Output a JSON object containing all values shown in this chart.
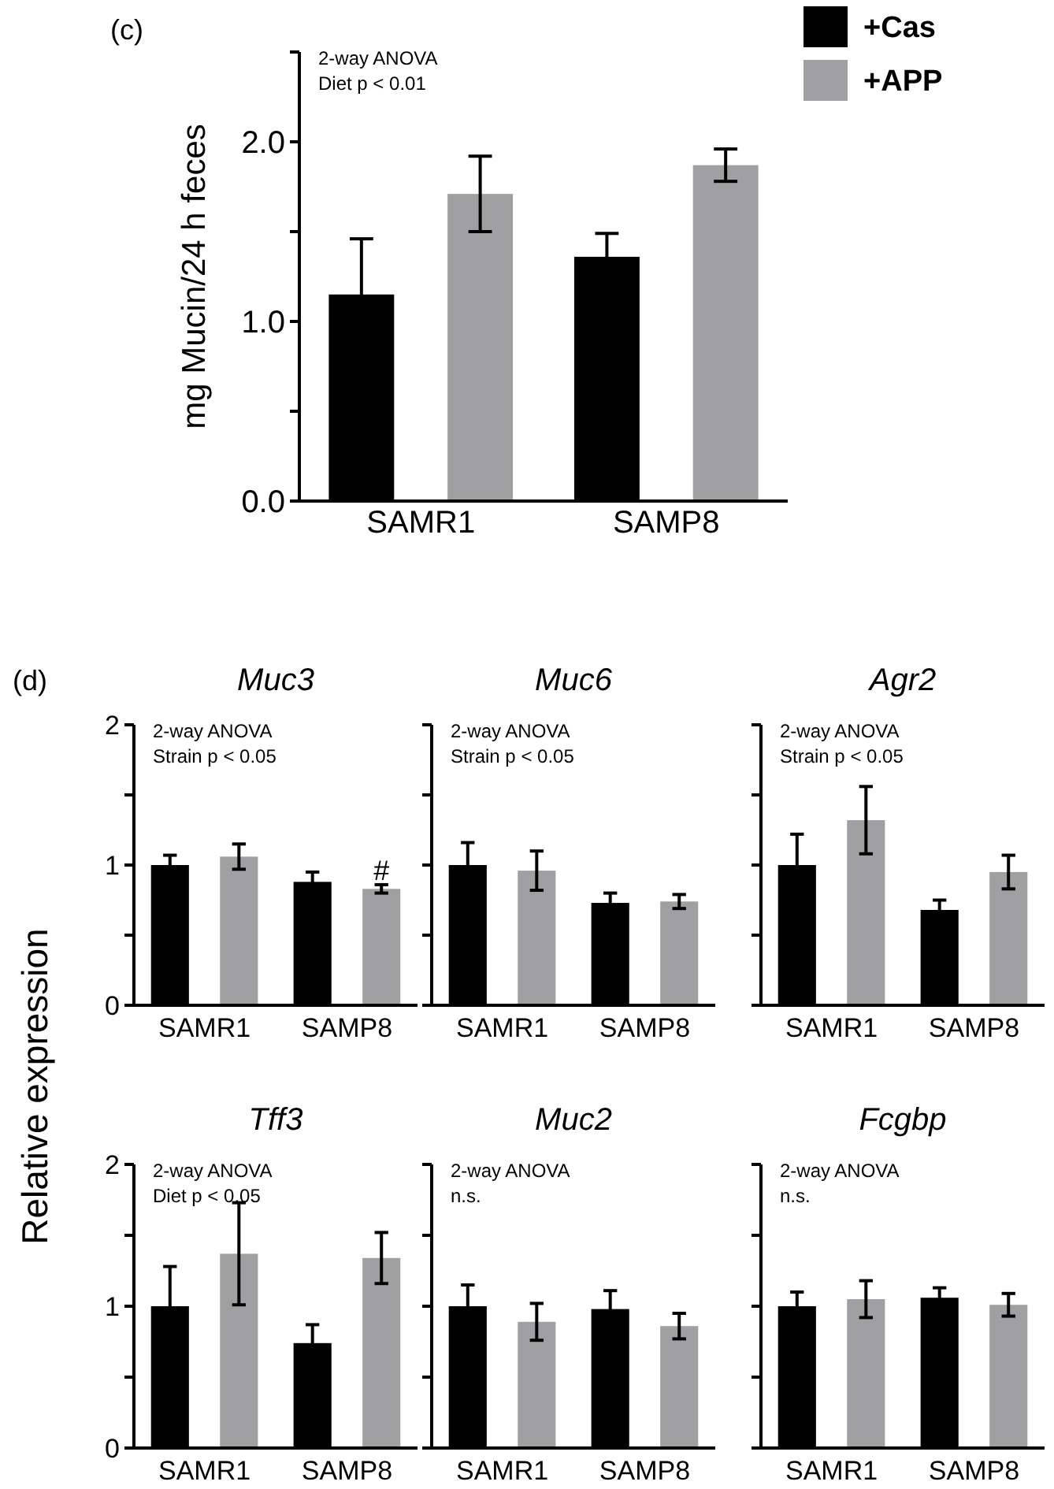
{
  "chart_data": [
    {
      "type": "bar",
      "title": "(c)",
      "ylabel": "mg Mucin/24 h feces",
      "categories": [
        "SAMR1",
        "SAMP8"
      ],
      "ylim": [
        0,
        2.5
      ],
      "yticks": [
        {
          "value": 0,
          "label": "0.0"
        },
        {
          "value": 0.5,
          "label": null
        },
        {
          "value": 1,
          "label": "1.0"
        },
        {
          "value": 1.5,
          "label": null
        },
        {
          "value": 2,
          "label": "2.0"
        },
        {
          "value": 2.5,
          "label": null
        }
      ],
      "legend": "top right",
      "grid": false,
      "annotations": [
        "2-way ANOVA",
        "Diet p < 0.01"
      ],
      "series": [
        {
          "name": "+Cas",
          "color": "#000000",
          "values": [
            1.15,
            1.36
          ],
          "errors": [
            0.31,
            0.13
          ]
        },
        {
          "name": "+APP",
          "color": "#a0a0a3",
          "values": [
            1.71,
            1.87
          ],
          "errors": [
            0.21,
            0.09
          ]
        }
      ]
    },
    {
      "type": "bar",
      "title": "Muc3",
      "ylabel": "Relative expression",
      "categories": [
        "SAMR1",
        "SAMP8"
      ],
      "ylim": [
        0,
        2
      ],
      "yticks": [
        0,
        {
          "value": 0.5,
          "label": null
        },
        1,
        {
          "value": 1.5,
          "label": null
        },
        2
      ],
      "grid": false,
      "annotations": [
        "(d)",
        "2-way ANOVA",
        "Strain p < 0.05",
        "#"
      ],
      "series": [
        {
          "color": "#000000",
          "values": [
            1.0,
            0.88
          ],
          "errors": [
            0.07,
            0.07
          ]
        },
        {
          "color": "#a0a0a3",
          "values": [
            1.06,
            0.83
          ],
          "errors": [
            0.09,
            0.03
          ]
        }
      ]
    },
    {
      "type": "bar",
      "title": "Muc6",
      "categories": [
        "SAMR1",
        "SAMP8"
      ],
      "ylim": [
        0,
        2
      ],
      "yticks": [
        0,
        {
          "value": 0.5,
          "label": null
        },
        1,
        {
          "value": 1.5,
          "label": null
        },
        2
      ],
      "tick_labels": "x",
      "grid": false,
      "annotations": [
        "2-way ANOVA",
        "Strain p < 0.05"
      ],
      "series": [
        {
          "color": "#000000",
          "values": [
            1.0,
            0.73
          ],
          "errors": [
            0.16,
            0.07
          ]
        },
        {
          "color": "#a0a0a3",
          "values": [
            0.96,
            0.74
          ],
          "errors": [
            0.14,
            0.05
          ]
        }
      ]
    },
    {
      "type": "bar",
      "title": "Agr2",
      "categories": [
        "SAMR1",
        "SAMP8"
      ],
      "ylim": [
        0,
        2
      ],
      "yticks": [
        0,
        {
          "value": 0.5,
          "label": null
        },
        1,
        {
          "value": 1.5,
          "label": null
        },
        2
      ],
      "tick_labels": "x",
      "grid": false,
      "annotations": [
        "2-way ANOVA",
        "Strain p < 0.05"
      ],
      "series": [
        {
          "color": "#000000",
          "values": [
            1.0,
            0.68
          ],
          "errors": [
            0.22,
            0.07
          ]
        },
        {
          "color": "#a0a0a3",
          "values": [
            1.32,
            0.95
          ],
          "errors": [
            0.24,
            0.12
          ]
        }
      ]
    },
    {
      "type": "bar",
      "title": "Tff3",
      "categories": [
        "SAMR1",
        "SAMP8"
      ],
      "ylim": [
        0,
        2
      ],
      "yticks": [
        0,
        {
          "value": 0.5,
          "label": null
        },
        1,
        {
          "value": 1.5,
          "label": null
        },
        2
      ],
      "grid": false,
      "annotations": [
        "2-way ANOVA",
        "Diet p < 0.05"
      ],
      "series": [
        {
          "color": "#000000",
          "values": [
            1.0,
            0.74
          ],
          "errors": [
            0.28,
            0.13
          ]
        },
        {
          "color": "#a0a0a3",
          "values": [
            1.37,
            1.34
          ],
          "errors": [
            0.36,
            0.18
          ]
        }
      ]
    },
    {
      "type": "bar",
      "title": "Muc2",
      "categories": [
        "SAMR1",
        "SAMP8"
      ],
      "ylim": [
        0,
        2
      ],
      "yticks": [
        0,
        {
          "value": 0.5,
          "label": null
        },
        1,
        {
          "value": 1.5,
          "label": null
        },
        2
      ],
      "tick_labels": "x",
      "grid": false,
      "annotations": [
        "2-way ANOVA",
        "n.s."
      ],
      "series": [
        {
          "color": "#000000",
          "values": [
            1.0,
            0.98
          ],
          "errors": [
            0.15,
            0.13
          ]
        },
        {
          "color": "#a0a0a3",
          "values": [
            0.89,
            0.86
          ],
          "errors": [
            0.13,
            0.09
          ]
        }
      ]
    },
    {
      "type": "bar",
      "title": "Fcgbp",
      "categories": [
        "SAMR1",
        "SAMP8"
      ],
      "ylim": [
        0,
        2
      ],
      "yticks": [
        0,
        {
          "value": 0.5,
          "label": null
        },
        1,
        {
          "value": 1.5,
          "label": null
        },
        2
      ],
      "tick_labels": "x",
      "grid": false,
      "annotations": [
        "2-way ANOVA",
        "n.s."
      ],
      "series": [
        {
          "color": "#000000",
          "values": [
            1.0,
            1.06
          ],
          "errors": [
            0.1,
            0.07
          ]
        },
        {
          "color": "#a0a0a3",
          "values": [
            1.05,
            1.01
          ],
          "errors": [
            0.13,
            0.08
          ]
        }
      ]
    }
  ]
}
